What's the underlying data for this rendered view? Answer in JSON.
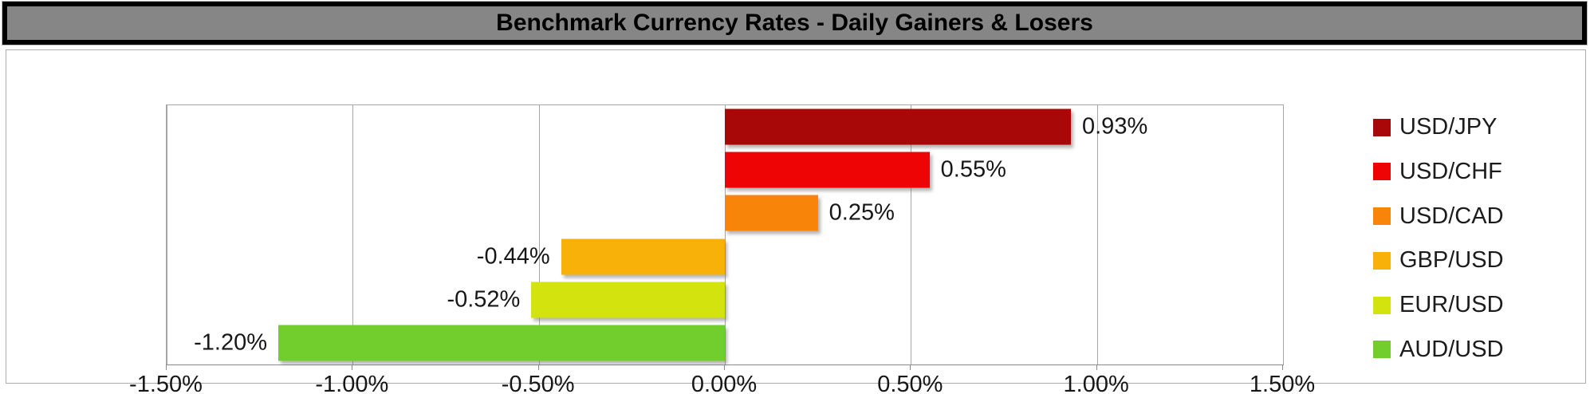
{
  "title": "Benchmark Currency Rates - Daily Gainers & Losers",
  "chart_data": {
    "type": "bar",
    "orientation": "horizontal",
    "title": "Benchmark Currency Rates - Daily Gainers & Losers",
    "categories": [
      "USD/JPY",
      "USD/CHF",
      "USD/CAD",
      "GBP/USD",
      "EUR/USD",
      "AUD/USD"
    ],
    "values": [
      0.93,
      0.55,
      0.25,
      -0.44,
      -0.52,
      -1.2
    ],
    "data_labels": [
      "0.93%",
      "0.55%",
      "0.25%",
      "-0.44%",
      "-0.52%",
      "-1.20%"
    ],
    "colors": [
      "#A80808",
      "#EE0404",
      "#F88509",
      "#F7B108",
      "#D2E30E",
      "#72CE2C"
    ],
    "x_axis": {
      "min": -1.5,
      "max": 1.5,
      "step": 0.5,
      "tick_labels": [
        "-1.50%",
        "-1.00%",
        "-0.50%",
        "0.00%",
        "0.50%",
        "1.00%",
        "1.50%"
      ]
    },
    "grid": true,
    "legend_position": "right"
  },
  "style_colors": {
    "title_bar_background": "#868686",
    "title_bar_border": "#000000",
    "gridline": "#A6A6A6",
    "axis_line": "#8A8A8A",
    "text": "#171717"
  }
}
